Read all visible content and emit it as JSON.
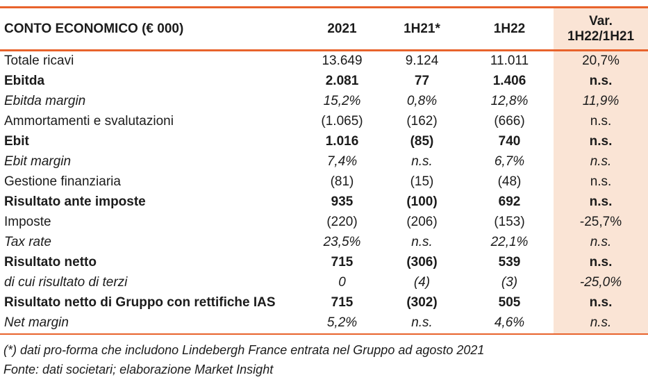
{
  "colors": {
    "orange": "#E8632C",
    "peach": "#FAE4D5"
  },
  "table": {
    "title": "CONTO ECONOMICO (€ 000)",
    "columns": [
      "2021",
      "1H21*",
      "1H22"
    ],
    "var_column": {
      "line1": "Var.",
      "line2": "1H22/1H21"
    },
    "rows": [
      {
        "label": "Totale ricavi",
        "style": "normal",
        "values": [
          "13.649",
          "9.124",
          "11.011",
          "20,7%"
        ]
      },
      {
        "label": "Ebitda",
        "style": "bold",
        "values": [
          "2.081",
          "77",
          "1.406",
          "n.s."
        ]
      },
      {
        "label": "Ebitda margin",
        "style": "italic",
        "values": [
          "15,2%",
          "0,8%",
          "12,8%",
          "11,9%"
        ]
      },
      {
        "label": "Ammortamenti e svalutazioni",
        "style": "normal",
        "values": [
          "(1.065)",
          "(162)",
          "(666)",
          "n.s."
        ]
      },
      {
        "label": "Ebit",
        "style": "bold",
        "values": [
          "1.016",
          "(85)",
          "740",
          "n.s."
        ]
      },
      {
        "label": "Ebit margin",
        "style": "italic",
        "values": [
          "7,4%",
          "n.s.",
          "6,7%",
          "n.s."
        ]
      },
      {
        "label": "Gestione finanziaria",
        "style": "normal",
        "values": [
          "(81)",
          "(15)",
          "(48)",
          "n.s."
        ]
      },
      {
        "label": "Risultato ante imposte",
        "style": "bold",
        "values": [
          "935",
          "(100)",
          "692",
          "n.s."
        ]
      },
      {
        "label": "Imposte",
        "style": "normal",
        "values": [
          "(220)",
          "(206)",
          "(153)",
          "-25,7%"
        ]
      },
      {
        "label": "Tax rate",
        "style": "italic",
        "values": [
          "23,5%",
          "n.s.",
          "22,1%",
          "n.s."
        ]
      },
      {
        "label": "Risultato netto",
        "style": "bold",
        "values": [
          "715",
          "(306)",
          "539",
          "n.s."
        ]
      },
      {
        "label": "di cui risultato di terzi",
        "style": "italic",
        "values": [
          "0",
          "(4)",
          "(3)",
          "-25,0%"
        ]
      },
      {
        "label": "Risultato netto di Gruppo con rettifiche IAS",
        "style": "bold",
        "values": [
          "715",
          "(302)",
          "505",
          "n.s."
        ]
      },
      {
        "label": "Net margin",
        "style": "italic",
        "values": [
          "5,2%",
          "n.s.",
          "4,6%",
          "n.s."
        ]
      }
    ]
  },
  "footnotes": {
    "note1": "(*) dati pro-forma che includono Lindebergh France entrata nel Gruppo ad agosto 2021",
    "note2": "Fonte: dati societari; elaborazione Market Insight"
  }
}
